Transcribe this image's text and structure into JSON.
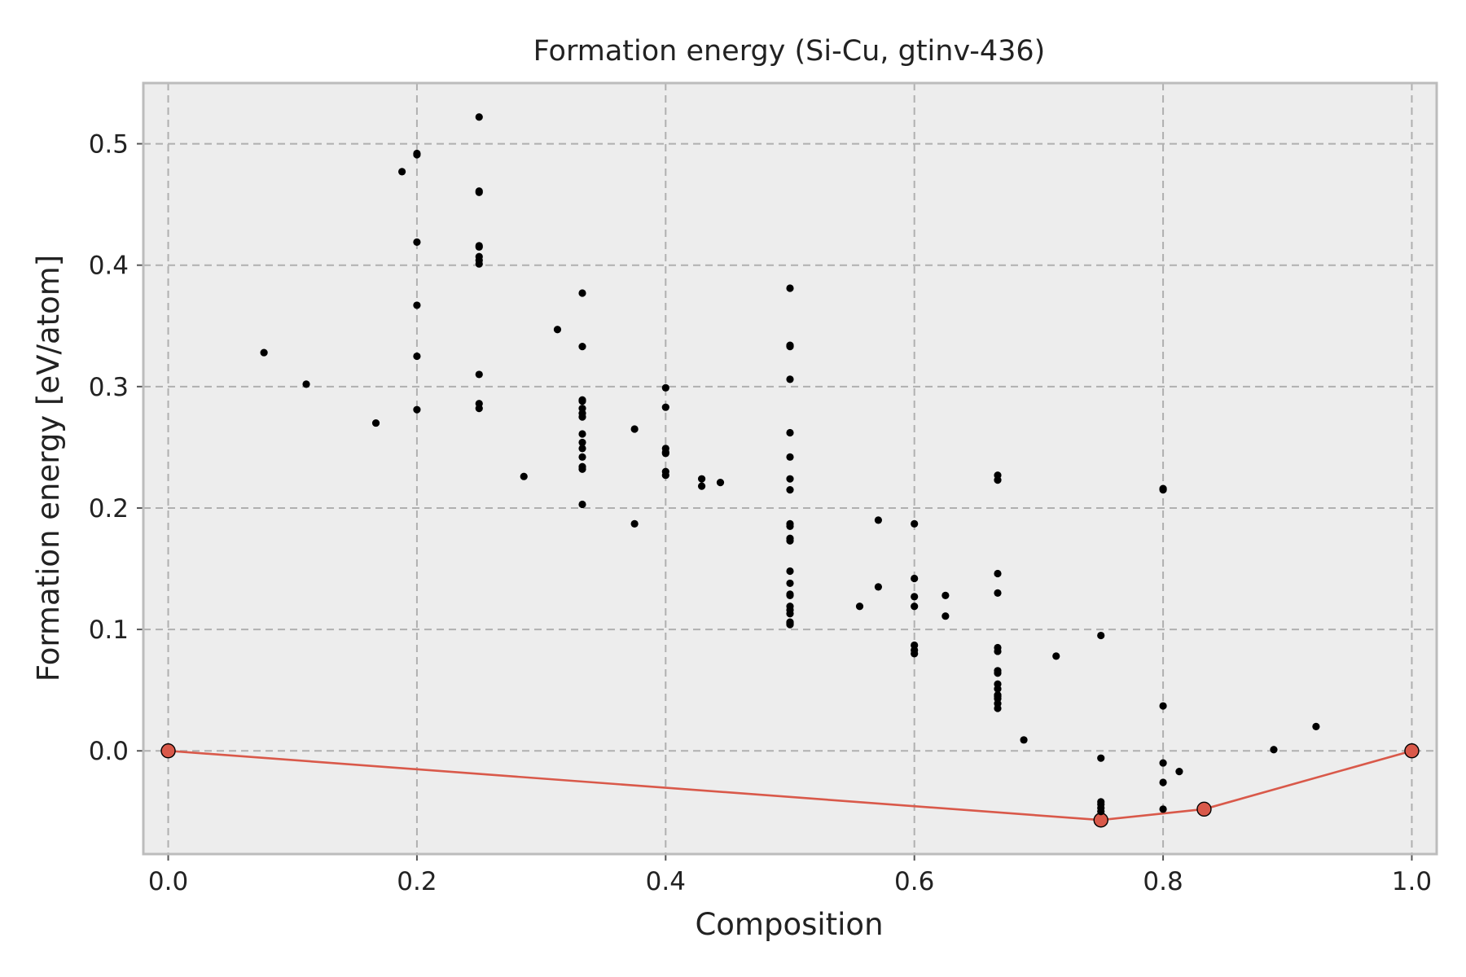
{
  "chart_data": {
    "type": "scatter",
    "title": "Formation energy (Si-Cu, gtinv-436)",
    "xlabel": "Composition",
    "ylabel": "Formation energy [eV/atom]",
    "xlim": [
      -0.02,
      1.02
    ],
    "ylim": [
      -0.085,
      0.55
    ],
    "xticks": [
      0.0,
      0.2,
      0.4,
      0.6,
      0.8,
      1.0
    ],
    "xtick_labels": [
      "0.0",
      "0.2",
      "0.4",
      "0.6",
      "0.8",
      "1.0"
    ],
    "yticks": [
      0.0,
      0.1,
      0.2,
      0.3,
      0.4,
      0.5
    ],
    "ytick_labels": [
      "0.0",
      "0.1",
      "0.2",
      "0.3",
      "0.4",
      "0.5"
    ],
    "grid": true,
    "colors": {
      "points": "#000000",
      "hull": "#d9594a",
      "hull_edge": "#000000",
      "plot_background": "#ededed"
    },
    "series": [
      {
        "kind": "points",
        "x": [
          0.077,
          0.111,
          0.167,
          0.188,
          0.2,
          0.2,
          0.2,
          0.2,
          0.2,
          0.2,
          0.25,
          0.25,
          0.25,
          0.25,
          0.25,
          0.25,
          0.25,
          0.25,
          0.25,
          0.25,
          0.25,
          0.286,
          0.313,
          0.333,
          0.333,
          0.333,
          0.333,
          0.333,
          0.333,
          0.333,
          0.333,
          0.333,
          0.333,
          0.333,
          0.333,
          0.333,
          0.333,
          0.375,
          0.375,
          0.4,
          0.4,
          0.4,
          0.4,
          0.4,
          0.4,
          0.4,
          0.429,
          0.429,
          0.444,
          0.5,
          0.5,
          0.5,
          0.5,
          0.5,
          0.5,
          0.5,
          0.5,
          0.5,
          0.5,
          0.5,
          0.5,
          0.5,
          0.5,
          0.5,
          0.5,
          0.5,
          0.5,
          0.5,
          0.5,
          0.5,
          0.5,
          0.556,
          0.571,
          0.571,
          0.6,
          0.6,
          0.6,
          0.6,
          0.6,
          0.6,
          0.6,
          0.625,
          0.625,
          0.667,
          0.667,
          0.667,
          0.667,
          0.667,
          0.667,
          0.667,
          0.667,
          0.667,
          0.667,
          0.667,
          0.667,
          0.667,
          0.667,
          0.667,
          0.688,
          0.714,
          0.75,
          0.75,
          0.75,
          0.75,
          0.75,
          0.75,
          0.8,
          0.8,
          0.8,
          0.8,
          0.8,
          0.8,
          0.813,
          0.889,
          0.923
        ],
        "y": [
          0.328,
          0.302,
          0.27,
          0.477,
          0.492,
          0.419,
          0.367,
          0.325,
          0.281,
          0.491,
          0.522,
          0.461,
          0.416,
          0.407,
          0.404,
          0.401,
          0.415,
          0.31,
          0.286,
          0.282,
          0.46,
          0.226,
          0.347,
          0.377,
          0.333,
          0.289,
          0.282,
          0.278,
          0.275,
          0.261,
          0.254,
          0.249,
          0.242,
          0.234,
          0.232,
          0.203,
          0.288,
          0.265,
          0.187,
          0.299,
          0.283,
          0.249,
          0.246,
          0.23,
          0.227,
          0.245,
          0.224,
          0.218,
          0.221,
          0.381,
          0.334,
          0.306,
          0.262,
          0.242,
          0.224,
          0.215,
          0.187,
          0.185,
          0.175,
          0.173,
          0.148,
          0.138,
          0.129,
          0.119,
          0.116,
          0.106,
          0.104,
          0.333,
          0.128,
          0.113,
          0.105,
          0.119,
          0.19,
          0.135,
          0.187,
          0.142,
          0.127,
          0.119,
          0.087,
          0.083,
          0.08,
          0.128,
          0.111,
          0.227,
          0.223,
          0.146,
          0.13,
          0.085,
          0.082,
          0.066,
          0.064,
          0.055,
          0.051,
          0.046,
          0.043,
          0.039,
          0.035,
          0.045,
          0.009,
          0.078,
          0.095,
          -0.006,
          -0.042,
          -0.044,
          -0.047,
          -0.05,
          0.216,
          0.215,
          0.037,
          -0.01,
          -0.026,
          -0.048,
          -0.017,
          0.001,
          0.02
        ]
      },
      {
        "kind": "convex_hull",
        "x": [
          0.0,
          0.75,
          0.833,
          1.0
        ],
        "y": [
          0.0,
          -0.057,
          -0.048,
          0.0
        ]
      }
    ]
  }
}
